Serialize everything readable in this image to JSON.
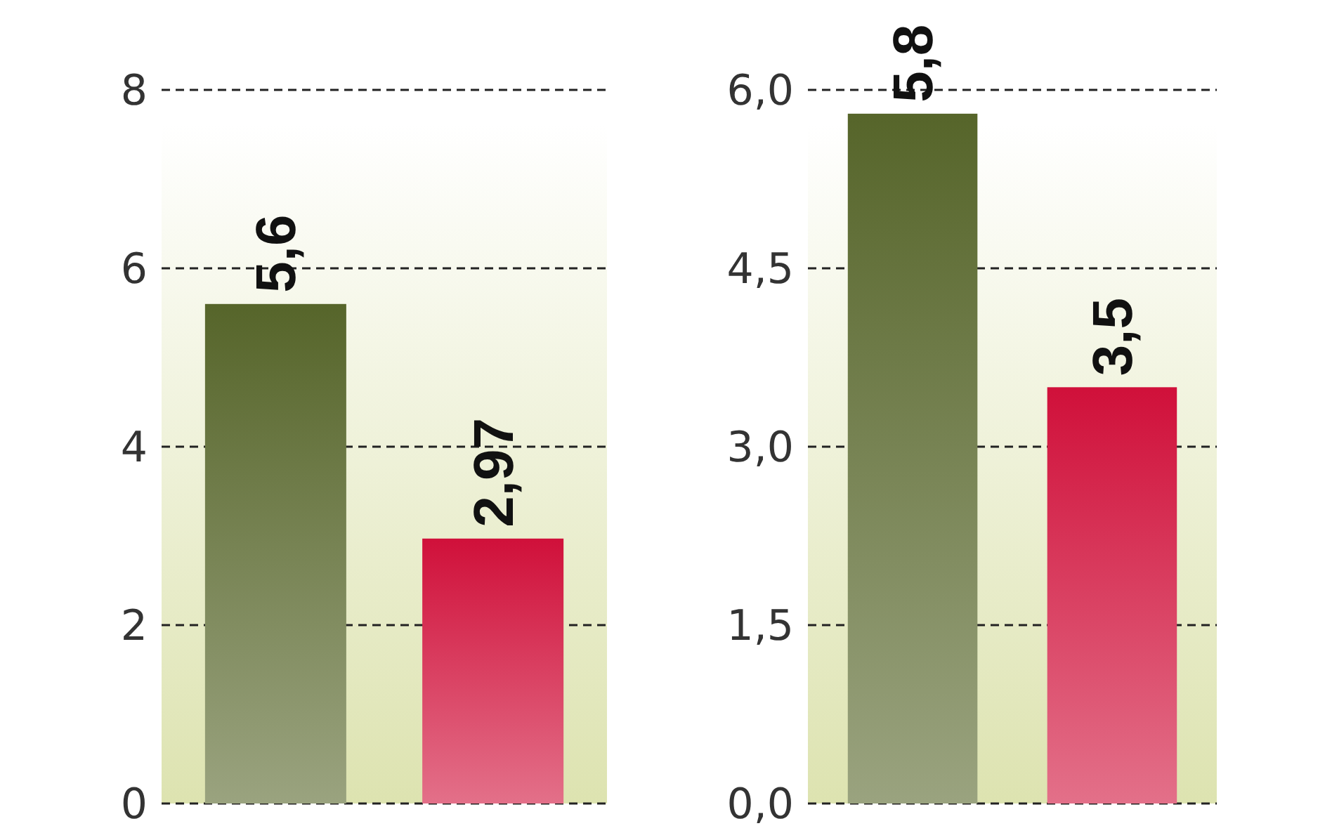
{
  "chart_data": [
    {
      "type": "bar",
      "categories": [
        null,
        null
      ],
      "values": [
        5.6,
        2.97
      ],
      "colors": [
        "#56652a",
        "#d0103a"
      ],
      "ylim": [
        0,
        8
      ],
      "yticks": [
        0,
        2,
        4,
        6,
        8
      ],
      "grid": "y",
      "value_labels": [
        "5,6",
        "2,97"
      ]
    },
    {
      "type": "bar",
      "categories": [
        null,
        null
      ],
      "values": [
        5.8,
        3.5
      ],
      "colors": [
        "#56652a",
        "#d0103a"
      ],
      "ylim": [
        0,
        6
      ],
      "yticks": [
        {
          "value": 0,
          "label": "0,0"
        },
        {
          "value": 1.5,
          "label": "1,5"
        },
        {
          "value": 3,
          "label": "3,0"
        },
        {
          "value": 4.5,
          "label": "4,5"
        },
        {
          "value": 6,
          "label": "6,0"
        }
      ],
      "grid": "y",
      "value_labels": [
        "5,8",
        "3,5"
      ]
    }
  ]
}
